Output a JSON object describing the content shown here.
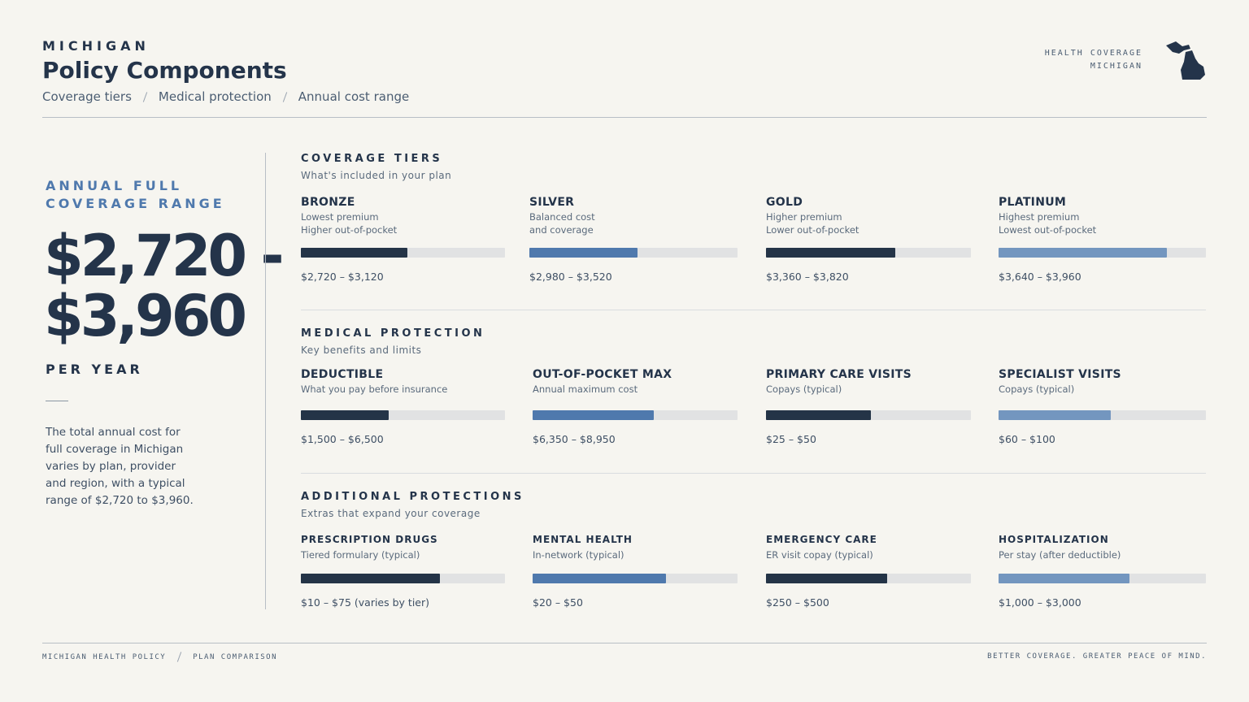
{
  "header": {
    "eyebrow": "MICHIGAN",
    "title": "Policy Components",
    "breadcrumbs": [
      "Coverage tiers",
      "Medical protection",
      "Annual cost range"
    ],
    "badge_lines": [
      "HEALTH COVERAGE",
      "MICHIGAN"
    ]
  },
  "summary": {
    "label_lines": [
      "ANNUAL FULL",
      "COVERAGE RANGE"
    ],
    "amount_lines": [
      "$2,720 -",
      "$3,960"
    ],
    "unit": "PER YEAR",
    "description": "The total annual cost for full coverage in Michigan varies by plan, provider and region, with a typical range of $2,720 to $3,960."
  },
  "sections": [
    {
      "title": "COVERAGE TIERS",
      "subtitle": "What's included in your plan",
      "items": [
        {
          "name": "BRONZE",
          "desc_lines": [
            "Lowest premium",
            "Higher out-of-pocket"
          ],
          "range": "$2,720 – $3,120"
        },
        {
          "name": "SILVER",
          "desc_lines": [
            "Balanced cost",
            "and coverage"
          ],
          "range": "$2,980 – $3,520"
        },
        {
          "name": "GOLD",
          "desc_lines": [
            "Higher premium",
            "Lower out-of-pocket"
          ],
          "range": "$3,360 – $3,820"
        },
        {
          "name": "PLATINUM",
          "desc_lines": [
            "Highest premium",
            "Lowest out-of-pocket"
          ],
          "range": "$3,640 – $3,960"
        }
      ]
    },
    {
      "title": "MEDICAL PROTECTION",
      "subtitle": "Key benefits and limits",
      "items": [
        {
          "name": "DEDUCTIBLE",
          "desc_lines": [
            "What you pay before insurance"
          ],
          "range": "$1,500 – $6,500"
        },
        {
          "name": "OUT-OF-POCKET MAX",
          "desc_lines": [
            "Annual maximum cost"
          ],
          "range": "$6,350 – $8,950"
        },
        {
          "name": "PRIMARY CARE VISITS",
          "desc_lines": [
            "Copays (typical)"
          ],
          "range": "$25 – $50"
        },
        {
          "name": "SPECIALIST VISITS",
          "desc_lines": [
            "Copays (typical)"
          ],
          "range": "$60 – $100"
        }
      ]
    },
    {
      "title": "ADDITIONAL PROTECTIONS",
      "subtitle": "Extras that expand your coverage",
      "items": [
        {
          "name": "PRESCRIPTION DRUGS",
          "desc_lines": [
            "Tiered formulary (typical)"
          ],
          "range": "$10 – $75 (varies by tier)"
        },
        {
          "name": "MENTAL HEALTH",
          "desc_lines": [
            "In-network (typical)"
          ],
          "range": "$20 – $50"
        },
        {
          "name": "EMERGENCY CARE",
          "desc_lines": [
            "ER visit copay (typical)"
          ],
          "range": "$250 – $500"
        },
        {
          "name": "HOSPITALIZATION",
          "desc_lines": [
            "Per stay (after deductible)"
          ],
          "range": "$1,000 – $3,000"
        }
      ]
    }
  ],
  "footer": {
    "left": [
      "MICHIGAN HEALTH POLICY",
      "PLAN COMPARISON"
    ],
    "right": "BETTER COVERAGE. GREATER PEACE OF MIND."
  }
}
